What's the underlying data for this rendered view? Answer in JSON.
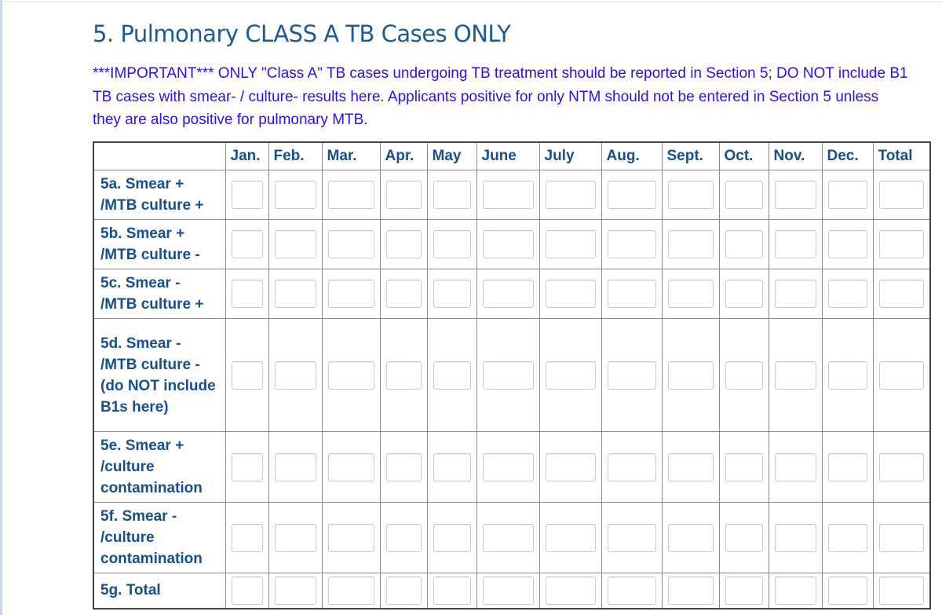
{
  "section": {
    "title": "5. Pulmonary CLASS A TB Cases ONLY",
    "note": "***IMPORTANT***  ONLY \"Class A\" TB cases undergoing TB treatment should be reported in Section 5; DO NOT include B1 TB cases with smear- / culture- results here. Applicants positive for only NTM should not be entered in Section 5 unless they are also positive for pulmonary MTB."
  },
  "table": {
    "columns": [
      "Jan.",
      "Feb.",
      "Mar.",
      "Apr.",
      "May",
      "June",
      "July",
      "Aug.",
      "Sept.",
      "Oct.",
      "Nov.",
      "Dec.",
      "Total"
    ],
    "rows": [
      {
        "label": "5a. Smear + /MTB culture +",
        "values": [
          "",
          "",
          "",
          "",
          "",
          "",
          "",
          "",
          "",
          "",
          "",
          "",
          ""
        ]
      },
      {
        "label": "5b. Smear + /MTB culture -",
        "values": [
          "",
          "",
          "",
          "",
          "",
          "",
          "",
          "",
          "",
          "",
          "",
          "",
          ""
        ]
      },
      {
        "label": "5c. Smear - /MTB culture +",
        "values": [
          "",
          "",
          "",
          "",
          "",
          "",
          "",
          "",
          "",
          "",
          "",
          "",
          ""
        ]
      },
      {
        "label": "5d. Smear - /MTB culture - (do NOT include B1s here)",
        "values": [
          "",
          "",
          "",
          "",
          "",
          "",
          "",
          "",
          "",
          "",
          "",
          "",
          ""
        ]
      },
      {
        "label": "5e. Smear + /culture contamination",
        "values": [
          "",
          "",
          "",
          "",
          "",
          "",
          "",
          "",
          "",
          "",
          "",
          "",
          ""
        ]
      },
      {
        "label": "5f. Smear - /culture contamination",
        "values": [
          "",
          "",
          "",
          "",
          "",
          "",
          "",
          "",
          "",
          "",
          "",
          "",
          ""
        ]
      },
      {
        "label": "5g. Total",
        "values": [
          "",
          "",
          "",
          "",
          "",
          "",
          "",
          "",
          "",
          "",
          "",
          "",
          ""
        ]
      }
    ]
  },
  "colors": {
    "title": "#1d5a92",
    "note": "#2a11e6",
    "header": "#164f8a"
  }
}
